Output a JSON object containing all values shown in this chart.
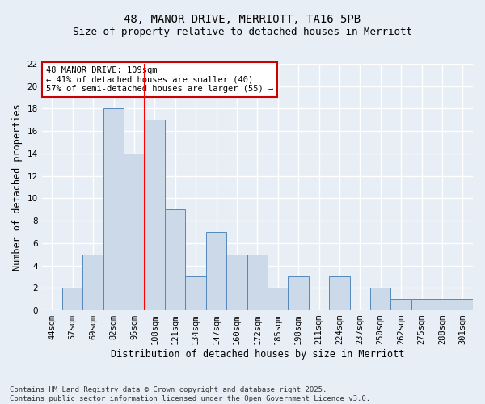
{
  "title_line1": "48, MANOR DRIVE, MERRIOTT, TA16 5PB",
  "title_line2": "Size of property relative to detached houses in Merriott",
  "xlabel": "Distribution of detached houses by size in Merriott",
  "ylabel": "Number of detached properties",
  "categories": [
    "44sqm",
    "57sqm",
    "69sqm",
    "82sqm",
    "95sqm",
    "108sqm",
    "121sqm",
    "134sqm",
    "147sqm",
    "160sqm",
    "172sqm",
    "185sqm",
    "198sqm",
    "211sqm",
    "224sqm",
    "237sqm",
    "250sqm",
    "262sqm",
    "275sqm",
    "288sqm",
    "301sqm"
  ],
  "values": [
    0,
    2,
    5,
    18,
    14,
    17,
    9,
    3,
    7,
    5,
    5,
    2,
    3,
    0,
    3,
    0,
    2,
    1,
    1,
    1,
    1
  ],
  "bar_color": "#ccd9e8",
  "bar_edge_color": "#5588bb",
  "red_line_x": 4.5,
  "ylim": [
    0,
    22
  ],
  "yticks": [
    0,
    2,
    4,
    6,
    8,
    10,
    12,
    14,
    16,
    18,
    20,
    22
  ],
  "annotation_text": "48 MANOR DRIVE: 109sqm\n← 41% of detached houses are smaller (40)\n57% of semi-detached houses are larger (55) →",
  "annotation_box_color": "#ffffff",
  "annotation_box_edge_color": "#cc0000",
  "footer_line1": "Contains HM Land Registry data © Crown copyright and database right 2025.",
  "footer_line2": "Contains public sector information licensed under the Open Government Licence v3.0.",
  "background_color": "#e8eef5",
  "grid_color": "#ffffff",
  "title_fontsize": 10,
  "subtitle_fontsize": 9,
  "axis_label_fontsize": 8.5,
  "tick_fontsize": 7.5,
  "annotation_fontsize": 7.5,
  "footer_fontsize": 6.5
}
